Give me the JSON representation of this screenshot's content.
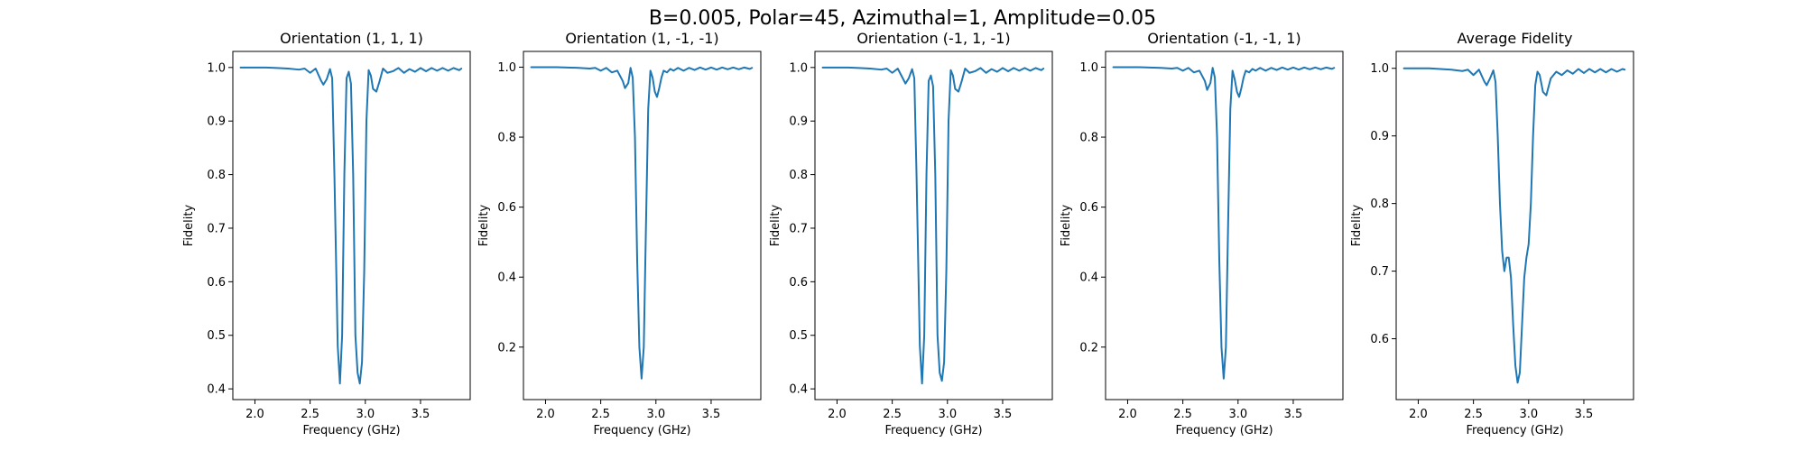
{
  "figure": {
    "suptitle": "B=0.005, Polar=45, Azimuthal=1, Amplitude=0.05"
  },
  "colors": {
    "series": "#1f77b4",
    "axes": "#000000"
  },
  "chart_data": [
    {
      "type": "line",
      "title": "Orientation (1, 1, 1)",
      "xlabel": "Frequency (GHz)",
      "ylabel": "Fidelity",
      "xlim": [
        1.8,
        3.95
      ],
      "ylim": [
        0.38,
        1.03
      ],
      "xticks": [
        2.0,
        2.5,
        3.0,
        3.5
      ],
      "xtick_labels": [
        "2.0",
        "2.5",
        "3.0",
        "3.5"
      ],
      "yticks": [
        0.4,
        0.5,
        0.6,
        0.7,
        0.8,
        0.9,
        1.0
      ],
      "ytick_labels": [
        "0.4",
        "0.5",
        "0.6",
        "0.7",
        "0.8",
        "0.9",
        "1.0"
      ],
      "grid": false,
      "series": [
        {
          "x": [
            1.87,
            2.0,
            2.1,
            2.2,
            2.3,
            2.4,
            2.45,
            2.5,
            2.55,
            2.6,
            2.62,
            2.65,
            2.68,
            2.7,
            2.72,
            2.75,
            2.77,
            2.79,
            2.81,
            2.83,
            2.85,
            2.87,
            2.89,
            2.91,
            2.93,
            2.95,
            2.97,
            2.99,
            3.01,
            3.03,
            3.05,
            3.07,
            3.1,
            3.13,
            3.16,
            3.2,
            3.25,
            3.3,
            3.35,
            3.4,
            3.45,
            3.5,
            3.55,
            3.6,
            3.65,
            3.7,
            3.75,
            3.8,
            3.85,
            3.87
          ],
          "y": [
            1.0,
            1.0,
            1.0,
            0.999,
            0.998,
            0.996,
            0.998,
            0.99,
            0.998,
            0.975,
            0.968,
            0.978,
            0.997,
            0.98,
            0.8,
            0.48,
            0.41,
            0.5,
            0.8,
            0.98,
            0.992,
            0.97,
            0.8,
            0.5,
            0.43,
            0.41,
            0.45,
            0.62,
            0.9,
            0.995,
            0.985,
            0.96,
            0.955,
            0.975,
            0.998,
            0.99,
            0.993,
            0.999,
            0.99,
            0.997,
            0.992,
            0.999,
            0.993,
            0.999,
            0.994,
            0.999,
            0.994,
            0.999,
            0.995,
            0.998
          ]
        }
      ]
    },
    {
      "type": "line",
      "title": "Orientation (1, -1, -1)",
      "xlabel": "Frequency (GHz)",
      "ylabel": "Fidelity",
      "xlim": [
        1.8,
        3.95
      ],
      "ylim": [
        0.05,
        1.045
      ],
      "xticks": [
        2.0,
        2.5,
        3.0,
        3.5
      ],
      "xtick_labels": [
        "2.0",
        "2.5",
        "3.0",
        "3.5"
      ],
      "yticks": [
        0.2,
        0.4,
        0.6,
        0.8,
        1.0
      ],
      "ytick_labels": [
        "0.2",
        "0.4",
        "0.6",
        "0.8",
        "1.0"
      ],
      "grid": false,
      "series": [
        {
          "x": [
            1.87,
            2.0,
            2.1,
            2.2,
            2.3,
            2.4,
            2.45,
            2.5,
            2.55,
            2.6,
            2.65,
            2.7,
            2.72,
            2.75,
            2.77,
            2.79,
            2.81,
            2.83,
            2.85,
            2.87,
            2.89,
            2.91,
            2.93,
            2.95,
            2.97,
            2.99,
            3.01,
            3.03,
            3.05,
            3.07,
            3.1,
            3.13,
            3.16,
            3.2,
            3.25,
            3.3,
            3.35,
            3.4,
            3.45,
            3.5,
            3.55,
            3.6,
            3.65,
            3.7,
            3.75,
            3.8,
            3.85,
            3.87
          ],
          "y": [
            1.0,
            1.0,
            1.0,
            0.999,
            0.998,
            0.996,
            0.998,
            0.99,
            0.998,
            0.985,
            0.99,
            0.96,
            0.94,
            0.955,
            0.998,
            0.97,
            0.8,
            0.45,
            0.2,
            0.11,
            0.2,
            0.55,
            0.88,
            0.99,
            0.97,
            0.93,
            0.915,
            0.94,
            0.97,
            0.99,
            0.985,
            0.995,
            0.99,
            0.998,
            0.99,
            0.998,
            0.992,
            0.999,
            0.993,
            0.999,
            0.993,
            0.999,
            0.994,
            0.999,
            0.994,
            0.999,
            0.995,
            0.998
          ]
        }
      ]
    },
    {
      "type": "line",
      "title": "Orientation (-1, 1, -1)",
      "xlabel": "Frequency (GHz)",
      "ylabel": "Fidelity",
      "xlim": [
        1.8,
        3.95
      ],
      "ylim": [
        0.38,
        1.03
      ],
      "xticks": [
        2.0,
        2.5,
        3.0,
        3.5
      ],
      "xtick_labels": [
        "2.0",
        "2.5",
        "3.0",
        "3.5"
      ],
      "yticks": [
        0.4,
        0.5,
        0.6,
        0.7,
        0.8,
        0.9,
        1.0
      ],
      "ytick_labels": [
        "0.4",
        "0.5",
        "0.6",
        "0.7",
        "0.8",
        "0.9",
        "1.0"
      ],
      "grid": false,
      "series": [
        {
          "x": [
            1.87,
            2.0,
            2.1,
            2.2,
            2.3,
            2.4,
            2.45,
            2.5,
            2.55,
            2.6,
            2.62,
            2.65,
            2.68,
            2.7,
            2.72,
            2.75,
            2.77,
            2.79,
            2.81,
            2.83,
            2.85,
            2.87,
            2.89,
            2.91,
            2.93,
            2.95,
            2.97,
            2.99,
            3.01,
            3.03,
            3.05,
            3.07,
            3.1,
            3.13,
            3.16,
            3.2,
            3.25,
            3.3,
            3.35,
            3.4,
            3.45,
            3.5,
            3.55,
            3.6,
            3.65,
            3.7,
            3.75,
            3.8,
            3.85,
            3.87
          ],
          "y": [
            1.0,
            1.0,
            1.0,
            0.999,
            0.998,
            0.996,
            0.998,
            0.99,
            0.998,
            0.978,
            0.97,
            0.98,
            0.997,
            0.98,
            0.8,
            0.48,
            0.41,
            0.5,
            0.8,
            0.975,
            0.985,
            0.965,
            0.8,
            0.5,
            0.43,
            0.415,
            0.45,
            0.62,
            0.9,
            0.995,
            0.985,
            0.96,
            0.955,
            0.975,
            0.998,
            0.99,
            0.993,
            0.999,
            0.99,
            0.997,
            0.992,
            0.999,
            0.993,
            0.999,
            0.994,
            0.999,
            0.994,
            0.999,
            0.995,
            0.998
          ]
        }
      ]
    },
    {
      "type": "line",
      "title": "Orientation (-1, -1, 1)",
      "xlabel": "Frequency (GHz)",
      "ylabel": "Fidelity",
      "xlim": [
        1.8,
        3.95
      ],
      "ylim": [
        0.05,
        1.045
      ],
      "xticks": [
        2.0,
        2.5,
        3.0,
        3.5
      ],
      "xtick_labels": [
        "2.0",
        "2.5",
        "3.0",
        "3.5"
      ],
      "yticks": [
        0.2,
        0.4,
        0.6,
        0.8,
        1.0
      ],
      "ytick_labels": [
        "0.2",
        "0.4",
        "0.6",
        "0.8",
        "1.0"
      ],
      "grid": false,
      "series": [
        {
          "x": [
            1.87,
            2.0,
            2.1,
            2.2,
            2.3,
            2.4,
            2.45,
            2.5,
            2.55,
            2.6,
            2.65,
            2.7,
            2.72,
            2.75,
            2.77,
            2.79,
            2.81,
            2.83,
            2.85,
            2.87,
            2.89,
            2.91,
            2.93,
            2.95,
            2.97,
            2.99,
            3.01,
            3.03,
            3.05,
            3.07,
            3.1,
            3.13,
            3.16,
            3.2,
            3.25,
            3.3,
            3.35,
            3.4,
            3.45,
            3.5,
            3.55,
            3.6,
            3.65,
            3.7,
            3.75,
            3.8,
            3.85,
            3.87
          ],
          "y": [
            1.0,
            1.0,
            1.0,
            0.999,
            0.998,
            0.996,
            0.998,
            0.99,
            0.998,
            0.985,
            0.99,
            0.96,
            0.935,
            0.955,
            0.998,
            0.97,
            0.8,
            0.45,
            0.2,
            0.11,
            0.2,
            0.55,
            0.88,
            0.99,
            0.965,
            0.93,
            0.915,
            0.94,
            0.97,
            0.99,
            0.985,
            0.995,
            0.99,
            0.998,
            0.99,
            0.998,
            0.992,
            0.999,
            0.993,
            0.999,
            0.993,
            0.999,
            0.994,
            0.999,
            0.994,
            0.999,
            0.995,
            0.998
          ]
        }
      ]
    },
    {
      "type": "line",
      "title": "Average Fidelity",
      "xlabel": "Frequency (GHz)",
      "ylabel": "Fidelity",
      "xlim": [
        1.8,
        3.95
      ],
      "ylim": [
        0.51,
        1.025
      ],
      "xticks": [
        2.0,
        2.5,
        3.0,
        3.5
      ],
      "xtick_labels": [
        "2.0",
        "2.5",
        "3.0",
        "3.5"
      ],
      "yticks": [
        0.6,
        0.7,
        0.8,
        0.9,
        1.0
      ],
      "ytick_labels": [
        "0.6",
        "0.7",
        "0.8",
        "0.9",
        "1.0"
      ],
      "grid": false,
      "series": [
        {
          "x": [
            1.87,
            2.0,
            2.1,
            2.2,
            2.3,
            2.4,
            2.45,
            2.5,
            2.55,
            2.6,
            2.62,
            2.65,
            2.68,
            2.7,
            2.72,
            2.74,
            2.76,
            2.78,
            2.8,
            2.82,
            2.84,
            2.86,
            2.88,
            2.9,
            2.92,
            2.94,
            2.96,
            2.98,
            3.0,
            3.02,
            3.04,
            3.06,
            3.08,
            3.1,
            3.13,
            3.16,
            3.2,
            3.25,
            3.3,
            3.35,
            3.4,
            3.45,
            3.5,
            3.55,
            3.6,
            3.65,
            3.7,
            3.75,
            3.8,
            3.85,
            3.87
          ],
          "y": [
            1.0,
            1.0,
            1.0,
            0.999,
            0.998,
            0.996,
            0.998,
            0.99,
            0.998,
            0.98,
            0.975,
            0.985,
            0.997,
            0.98,
            0.9,
            0.8,
            0.73,
            0.7,
            0.72,
            0.72,
            0.69,
            0.62,
            0.56,
            0.535,
            0.55,
            0.62,
            0.69,
            0.72,
            0.74,
            0.8,
            0.9,
            0.975,
            0.995,
            0.99,
            0.965,
            0.96,
            0.985,
            0.995,
            0.99,
            0.997,
            0.992,
            0.999,
            0.993,
            0.999,
            0.994,
            0.999,
            0.994,
            0.999,
            0.995,
            0.999,
            0.998
          ]
        }
      ]
    }
  ]
}
